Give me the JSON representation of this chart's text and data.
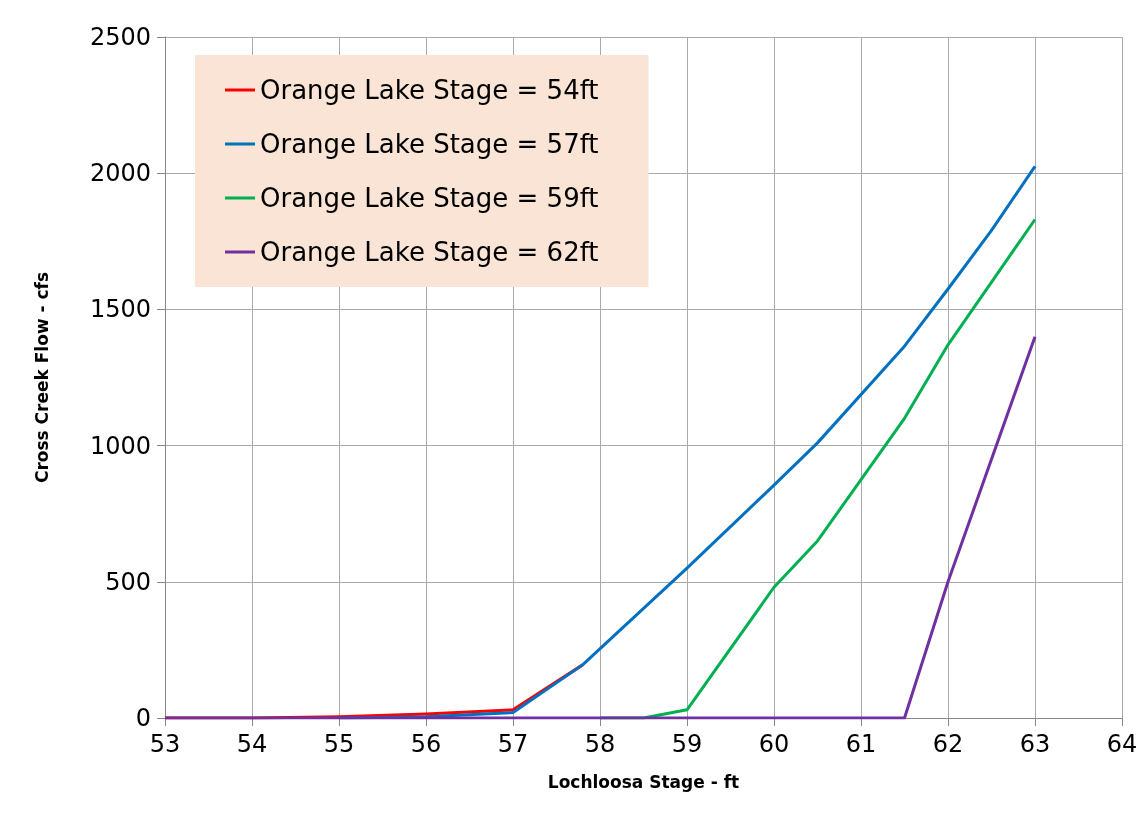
{
  "chart_data": {
    "type": "line",
    "xlabel": "Lochloosa Stage - ft",
    "ylabel": "Cross Creek Flow - cfs",
    "xlim": [
      53,
      64
    ],
    "xticks": [
      53,
      54,
      55,
      56,
      57,
      58,
      59,
      60,
      61,
      62,
      63,
      64
    ],
    "ylim": [
      0,
      2500
    ],
    "yticks": [
      0,
      500,
      1000,
      1500,
      2000,
      2500
    ],
    "grid": true,
    "legend": "top left",
    "marker": "none",
    "line_style": "solid",
    "series": [
      {
        "name": "Orange Lake Stage = 54ft",
        "color": "#ff0000",
        "x": [
          53,
          54,
          55,
          56,
          57,
          57.8
        ],
        "values": [
          0,
          0,
          5,
          15,
          30,
          195
        ]
      },
      {
        "name": "Orange Lake Stage = 57ft",
        "color": "#0070c0",
        "x": [
          55,
          56,
          57,
          57.8,
          59,
          60,
          60.5,
          61.5,
          62,
          62.5,
          63
        ],
        "values": [
          0,
          5,
          20,
          195,
          550,
          855,
          1010,
          1365,
          1575,
          1790,
          2025
        ]
      },
      {
        "name": "Orange Lake Stage = 59ft",
        "color": "#00b050",
        "x": [
          58,
          58.5,
          59,
          60,
          60.5,
          61.5,
          62,
          63
        ],
        "values": [
          0,
          0,
          30,
          480,
          650,
          1100,
          1370,
          1830
        ]
      },
      {
        "name": "Orange Lake Stage = 62ft",
        "color": "#7030a0",
        "x": [
          53,
          54,
          55,
          56,
          57,
          58,
          59,
          60,
          61,
          61.5,
          62,
          63
        ],
        "values": [
          0,
          0,
          0,
          0,
          0,
          0,
          0,
          0,
          0,
          0,
          500,
          1400
        ]
      }
    ]
  }
}
